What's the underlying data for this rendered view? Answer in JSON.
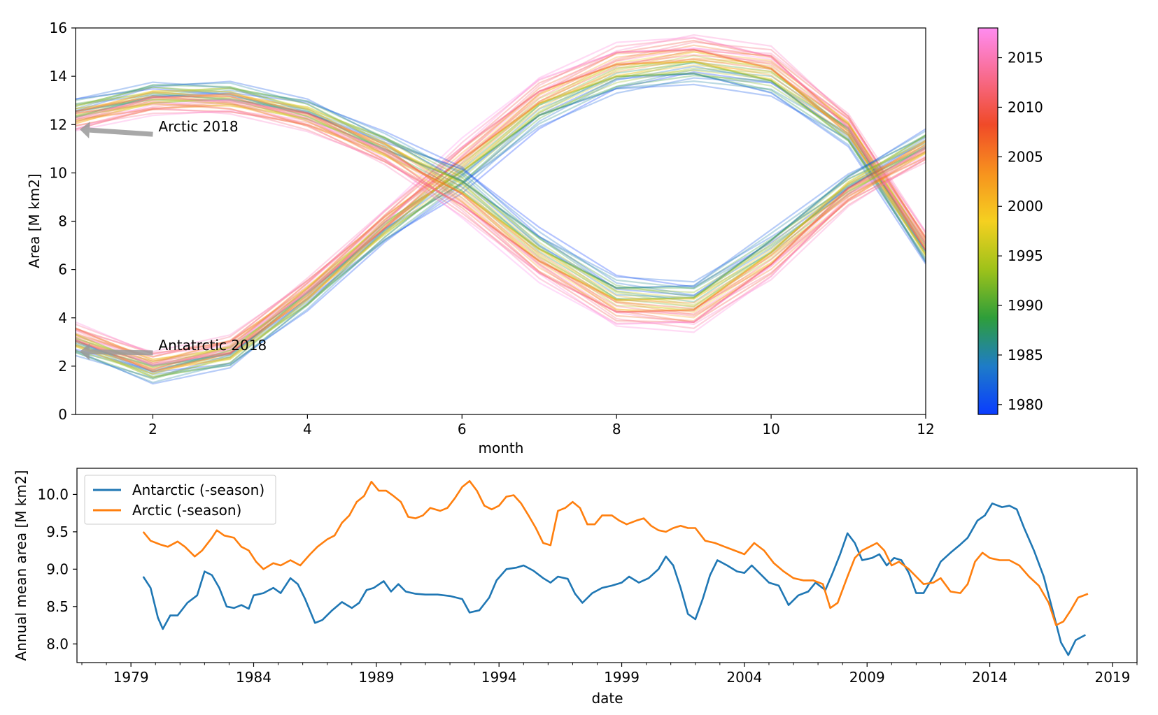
{
  "chart_data": [
    {
      "type": "line",
      "xlabel": "month",
      "ylabel": "Area [M km2]",
      "xlim": [
        1,
        12
      ],
      "ylim": [
        0,
        16
      ],
      "x_ticks": [
        2,
        4,
        6,
        8,
        10,
        12
      ],
      "y_ticks": [
        0,
        2,
        4,
        6,
        8,
        10,
        12,
        14,
        16
      ],
      "months": [
        1,
        2,
        3,
        4,
        5,
        6,
        7,
        8,
        9,
        10,
        11,
        12
      ],
      "line_alpha": 0.3,
      "years": [
        1979,
        2018
      ],
      "colorbar": {
        "ticks": [
          1980,
          1985,
          1990,
          1995,
          2000,
          2005,
          2010,
          2015
        ],
        "range": [
          1979,
          2018
        ],
        "colors": [
          "#0a3cff",
          "#1e7cc8",
          "#2e9e3a",
          "#9ec21a",
          "#f5d020",
          "#f7921e",
          "#f04a28",
          "#f86b8e",
          "#ff8cf0"
        ]
      },
      "series": [
        {
          "region": "Antarctic",
          "mean": [
            3.1,
            1.95,
            2.6,
            5.0,
            7.8,
            10.3,
            12.9,
            14.3,
            14.7,
            14.2,
            11.8,
            6.9
          ],
          "lines": 40
        },
        {
          "region": "Arctic",
          "mean": [
            12.4,
            13.1,
            13.1,
            12.4,
            11.0,
            9.2,
            6.6,
            4.7,
            4.5,
            6.6,
            9.3,
            11.1
          ],
          "lines": 40
        }
      ],
      "annotations": [
        {
          "text": "Arctic 2018",
          "from": [
            2,
            11.6
          ],
          "to": [
            1,
            11.8
          ]
        },
        {
          "text": "Antatrctic 2018",
          "from": [
            2,
            2.55
          ],
          "to": [
            1,
            2.6
          ]
        }
      ]
    },
    {
      "type": "line",
      "xlabel": "date",
      "ylabel": "Annual mean area [M km2]",
      "xlim": [
        1976.8,
        2020.0
      ],
      "ylim": [
        7.75,
        10.35
      ],
      "x_ticks": [
        1979,
        1984,
        1989,
        1994,
        1999,
        2004,
        2009,
        2014,
        2019
      ],
      "y_ticks": [
        8.0,
        8.5,
        9.0,
        9.5,
        10.0
      ],
      "y_tick_labels": [
        "8.0",
        "8.5",
        "9.0",
        "9.5",
        "10.0"
      ],
      "legend_position": "upper-left",
      "series": [
        {
          "name": "Antarctic (-season)",
          "color": "#1f77b4",
          "points": [
            [
              1979.5,
              8.9
            ],
            [
              1979.8,
              8.75
            ],
            [
              1980.1,
              8.35
            ],
            [
              1980.3,
              8.2
            ],
            [
              1980.6,
              8.38
            ],
            [
              1980.9,
              8.38
            ],
            [
              1981.3,
              8.55
            ],
            [
              1981.7,
              8.65
            ],
            [
              1982.0,
              8.97
            ],
            [
              1982.3,
              8.92
            ],
            [
              1982.6,
              8.75
            ],
            [
              1982.9,
              8.5
            ],
            [
              1983.2,
              8.48
            ],
            [
              1983.5,
              8.52
            ],
            [
              1983.8,
              8.47
            ],
            [
              1984.0,
              8.65
            ],
            [
              1984.4,
              8.68
            ],
            [
              1984.8,
              8.75
            ],
            [
              1985.1,
              8.68
            ],
            [
              1985.5,
              8.88
            ],
            [
              1985.8,
              8.8
            ],
            [
              1986.1,
              8.6
            ],
            [
              1986.5,
              8.28
            ],
            [
              1986.8,
              8.32
            ],
            [
              1987.2,
              8.45
            ],
            [
              1987.6,
              8.56
            ],
            [
              1988.0,
              8.48
            ],
            [
              1988.3,
              8.55
            ],
            [
              1988.6,
              8.72
            ],
            [
              1988.9,
              8.75
            ],
            [
              1989.3,
              8.84
            ],
            [
              1989.6,
              8.7
            ],
            [
              1989.9,
              8.8
            ],
            [
              1990.2,
              8.7
            ],
            [
              1990.6,
              8.67
            ],
            [
              1991.0,
              8.66
            ],
            [
              1991.5,
              8.66
            ],
            [
              1992.0,
              8.64
            ],
            [
              1992.5,
              8.6
            ],
            [
              1992.8,
              8.42
            ],
            [
              1993.2,
              8.45
            ],
            [
              1993.6,
              8.62
            ],
            [
              1993.9,
              8.85
            ],
            [
              1994.3,
              9.0
            ],
            [
              1994.7,
              9.02
            ],
            [
              1995.0,
              9.05
            ],
            [
              1995.4,
              8.98
            ],
            [
              1995.8,
              8.88
            ],
            [
              1996.1,
              8.82
            ],
            [
              1996.4,
              8.9
            ],
            [
              1996.8,
              8.87
            ],
            [
              1997.1,
              8.67
            ],
            [
              1997.4,
              8.55
            ],
            [
              1997.8,
              8.68
            ],
            [
              1998.2,
              8.75
            ],
            [
              1998.6,
              8.78
            ],
            [
              1999.0,
              8.82
            ],
            [
              1999.3,
              8.9
            ],
            [
              1999.7,
              8.82
            ],
            [
              2000.1,
              8.88
            ],
            [
              2000.5,
              9.0
            ],
            [
              2000.8,
              9.17
            ],
            [
              2001.1,
              9.05
            ],
            [
              2001.4,
              8.75
            ],
            [
              2001.7,
              8.4
            ],
            [
              2002.0,
              8.33
            ],
            [
              2002.3,
              8.6
            ],
            [
              2002.6,
              8.92
            ],
            [
              2002.9,
              9.12
            ],
            [
              2003.3,
              9.05
            ],
            [
              2003.7,
              8.97
            ],
            [
              2004.0,
              8.95
            ],
            [
              2004.3,
              9.05
            ],
            [
              2004.7,
              8.92
            ],
            [
              2005.0,
              8.82
            ],
            [
              2005.4,
              8.78
            ],
            [
              2005.8,
              8.52
            ],
            [
              2006.2,
              8.65
            ],
            [
              2006.6,
              8.7
            ],
            [
              2006.9,
              8.82
            ],
            [
              2007.3,
              8.72
            ],
            [
              2007.6,
              8.95
            ],
            [
              2007.9,
              9.2
            ],
            [
              2008.2,
              9.48
            ],
            [
              2008.5,
              9.35
            ],
            [
              2008.8,
              9.12
            ],
            [
              2009.2,
              9.15
            ],
            [
              2009.5,
              9.2
            ],
            [
              2009.8,
              9.05
            ],
            [
              2010.1,
              9.15
            ],
            [
              2010.4,
              9.12
            ],
            [
              2010.7,
              8.95
            ],
            [
              2011.0,
              8.68
            ],
            [
              2011.3,
              8.68
            ],
            [
              2011.7,
              8.9
            ],
            [
              2012.0,
              9.1
            ],
            [
              2012.4,
              9.22
            ],
            [
              2012.8,
              9.33
            ],
            [
              2013.1,
              9.42
            ],
            [
              2013.5,
              9.65
            ],
            [
              2013.8,
              9.72
            ],
            [
              2014.1,
              9.88
            ],
            [
              2014.5,
              9.83
            ],
            [
              2014.8,
              9.85
            ],
            [
              2015.1,
              9.8
            ],
            [
              2015.4,
              9.55
            ],
            [
              2015.8,
              9.25
            ],
            [
              2016.2,
              8.9
            ],
            [
              2016.6,
              8.4
            ],
            [
              2016.9,
              8.02
            ],
            [
              2017.2,
              7.85
            ],
            [
              2017.5,
              8.05
            ],
            [
              2017.9,
              8.12
            ]
          ]
        },
        {
          "name": "Arctic (-season)",
          "color": "#ff7f0e",
          "points": [
            [
              1979.5,
              9.5
            ],
            [
              1979.8,
              9.38
            ],
            [
              1980.2,
              9.33
            ],
            [
              1980.5,
              9.3
            ],
            [
              1980.9,
              9.37
            ],
            [
              1981.2,
              9.3
            ],
            [
              1981.6,
              9.17
            ],
            [
              1981.9,
              9.25
            ],
            [
              1982.3,
              9.42
            ],
            [
              1982.5,
              9.52
            ],
            [
              1982.8,
              9.45
            ],
            [
              1983.2,
              9.42
            ],
            [
              1983.5,
              9.3
            ],
            [
              1983.8,
              9.25
            ],
            [
              1984.1,
              9.1
            ],
            [
              1984.4,
              9.0
            ],
            [
              1984.8,
              9.08
            ],
            [
              1985.1,
              9.05
            ],
            [
              1985.5,
              9.12
            ],
            [
              1985.9,
              9.05
            ],
            [
              1986.3,
              9.2
            ],
            [
              1986.6,
              9.3
            ],
            [
              1987.0,
              9.4
            ],
            [
              1987.3,
              9.45
            ],
            [
              1987.6,
              9.62
            ],
            [
              1987.9,
              9.72
            ],
            [
              1988.2,
              9.9
            ],
            [
              1988.5,
              9.98
            ],
            [
              1988.8,
              10.17
            ],
            [
              1989.1,
              10.05
            ],
            [
              1989.4,
              10.05
            ],
            [
              1989.7,
              9.98
            ],
            [
              1990.0,
              9.9
            ],
            [
              1990.3,
              9.7
            ],
            [
              1990.6,
              9.68
            ],
            [
              1990.9,
              9.72
            ],
            [
              1991.2,
              9.82
            ],
            [
              1991.6,
              9.78
            ],
            [
              1991.9,
              9.82
            ],
            [
              1992.2,
              9.95
            ],
            [
              1992.5,
              10.1
            ],
            [
              1992.8,
              10.18
            ],
            [
              1993.1,
              10.05
            ],
            [
              1993.4,
              9.85
            ],
            [
              1993.7,
              9.8
            ],
            [
              1994.0,
              9.85
            ],
            [
              1994.3,
              9.97
            ],
            [
              1994.6,
              9.99
            ],
            [
              1994.9,
              9.88
            ],
            [
              1995.2,
              9.72
            ],
            [
              1995.5,
              9.55
            ],
            [
              1995.8,
              9.35
            ],
            [
              1996.1,
              9.32
            ],
            [
              1996.4,
              9.78
            ],
            [
              1996.7,
              9.82
            ],
            [
              1997.0,
              9.9
            ],
            [
              1997.3,
              9.82
            ],
            [
              1997.6,
              9.6
            ],
            [
              1997.9,
              9.6
            ],
            [
              1998.2,
              9.72
            ],
            [
              1998.6,
              9.72
            ],
            [
              1998.9,
              9.65
            ],
            [
              1999.2,
              9.6
            ],
            [
              1999.6,
              9.65
            ],
            [
              1999.9,
              9.68
            ],
            [
              2000.2,
              9.58
            ],
            [
              2000.5,
              9.52
            ],
            [
              2000.8,
              9.5
            ],
            [
              2001.1,
              9.55
            ],
            [
              2001.4,
              9.58
            ],
            [
              2001.7,
              9.55
            ],
            [
              2002.0,
              9.55
            ],
            [
              2002.4,
              9.38
            ],
            [
              2002.8,
              9.35
            ],
            [
              2003.2,
              9.3
            ],
            [
              2003.6,
              9.25
            ],
            [
              2004.0,
              9.2
            ],
            [
              2004.4,
              9.35
            ],
            [
              2004.8,
              9.25
            ],
            [
              2005.2,
              9.08
            ],
            [
              2005.6,
              8.97
            ],
            [
              2006.0,
              8.88
            ],
            [
              2006.4,
              8.85
            ],
            [
              2006.8,
              8.85
            ],
            [
              2007.2,
              8.8
            ],
            [
              2007.5,
              8.48
            ],
            [
              2007.8,
              8.55
            ],
            [
              2008.2,
              8.9
            ],
            [
              2008.5,
              9.15
            ],
            [
              2008.8,
              9.25
            ],
            [
              2009.1,
              9.3
            ],
            [
              2009.4,
              9.35
            ],
            [
              2009.7,
              9.25
            ],
            [
              2010.0,
              9.05
            ],
            [
              2010.3,
              9.1
            ],
            [
              2010.7,
              9.0
            ],
            [
              2011.0,
              8.9
            ],
            [
              2011.3,
              8.8
            ],
            [
              2011.7,
              8.82
            ],
            [
              2012.0,
              8.88
            ],
            [
              2012.4,
              8.7
            ],
            [
              2012.8,
              8.68
            ],
            [
              2013.1,
              8.8
            ],
            [
              2013.4,
              9.1
            ],
            [
              2013.7,
              9.22
            ],
            [
              2014.0,
              9.15
            ],
            [
              2014.4,
              9.12
            ],
            [
              2014.8,
              9.12
            ],
            [
              2015.2,
              9.05
            ],
            [
              2015.6,
              8.9
            ],
            [
              2016.0,
              8.78
            ],
            [
              2016.4,
              8.55
            ],
            [
              2016.7,
              8.25
            ],
            [
              2017.0,
              8.3
            ],
            [
              2017.3,
              8.45
            ],
            [
              2017.6,
              8.62
            ],
            [
              2018.0,
              8.67
            ]
          ]
        }
      ]
    }
  ]
}
